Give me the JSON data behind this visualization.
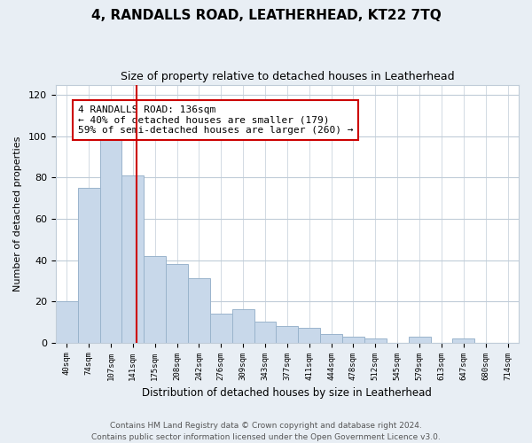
{
  "title": "4, RANDALLS ROAD, LEATHERHEAD, KT22 7TQ",
  "subtitle": "Size of property relative to detached houses in Leatherhead",
  "xlabel": "Distribution of detached houses by size in Leatherhead",
  "ylabel": "Number of detached properties",
  "bar_labels": [
    "40sqm",
    "74sqm",
    "107sqm",
    "141sqm",
    "175sqm",
    "208sqm",
    "242sqm",
    "276sqm",
    "309sqm",
    "343sqm",
    "377sqm",
    "411sqm",
    "444sqm",
    "478sqm",
    "512sqm",
    "545sqm",
    "579sqm",
    "613sqm",
    "647sqm",
    "680sqm",
    "714sqm"
  ],
  "bar_values": [
    20,
    75,
    101,
    81,
    42,
    38,
    31,
    14,
    16,
    10,
    8,
    7,
    4,
    3,
    2,
    0,
    3,
    0,
    2,
    0,
    0
  ],
  "bar_color": "#c8d8ea",
  "bar_edge_color": "#9ab4cc",
  "vline_x": 3.15,
  "vline_color": "#cc0000",
  "annotation_text": "4 RANDALLS ROAD: 136sqm\n← 40% of detached houses are smaller (179)\n59% of semi-detached houses are larger (260) →",
  "annotation_box_color": "#ffffff",
  "annotation_box_edge": "#cc0000",
  "ylim": [
    0,
    125
  ],
  "yticks": [
    0,
    20,
    40,
    60,
    80,
    100,
    120
  ],
  "footer": "Contains HM Land Registry data © Crown copyright and database right 2024.\nContains public sector information licensed under the Open Government Licence v3.0.",
  "bg_color": "#e8eef4",
  "plot_bg_color": "#ffffff",
  "grid_color": "#c0ccd8"
}
